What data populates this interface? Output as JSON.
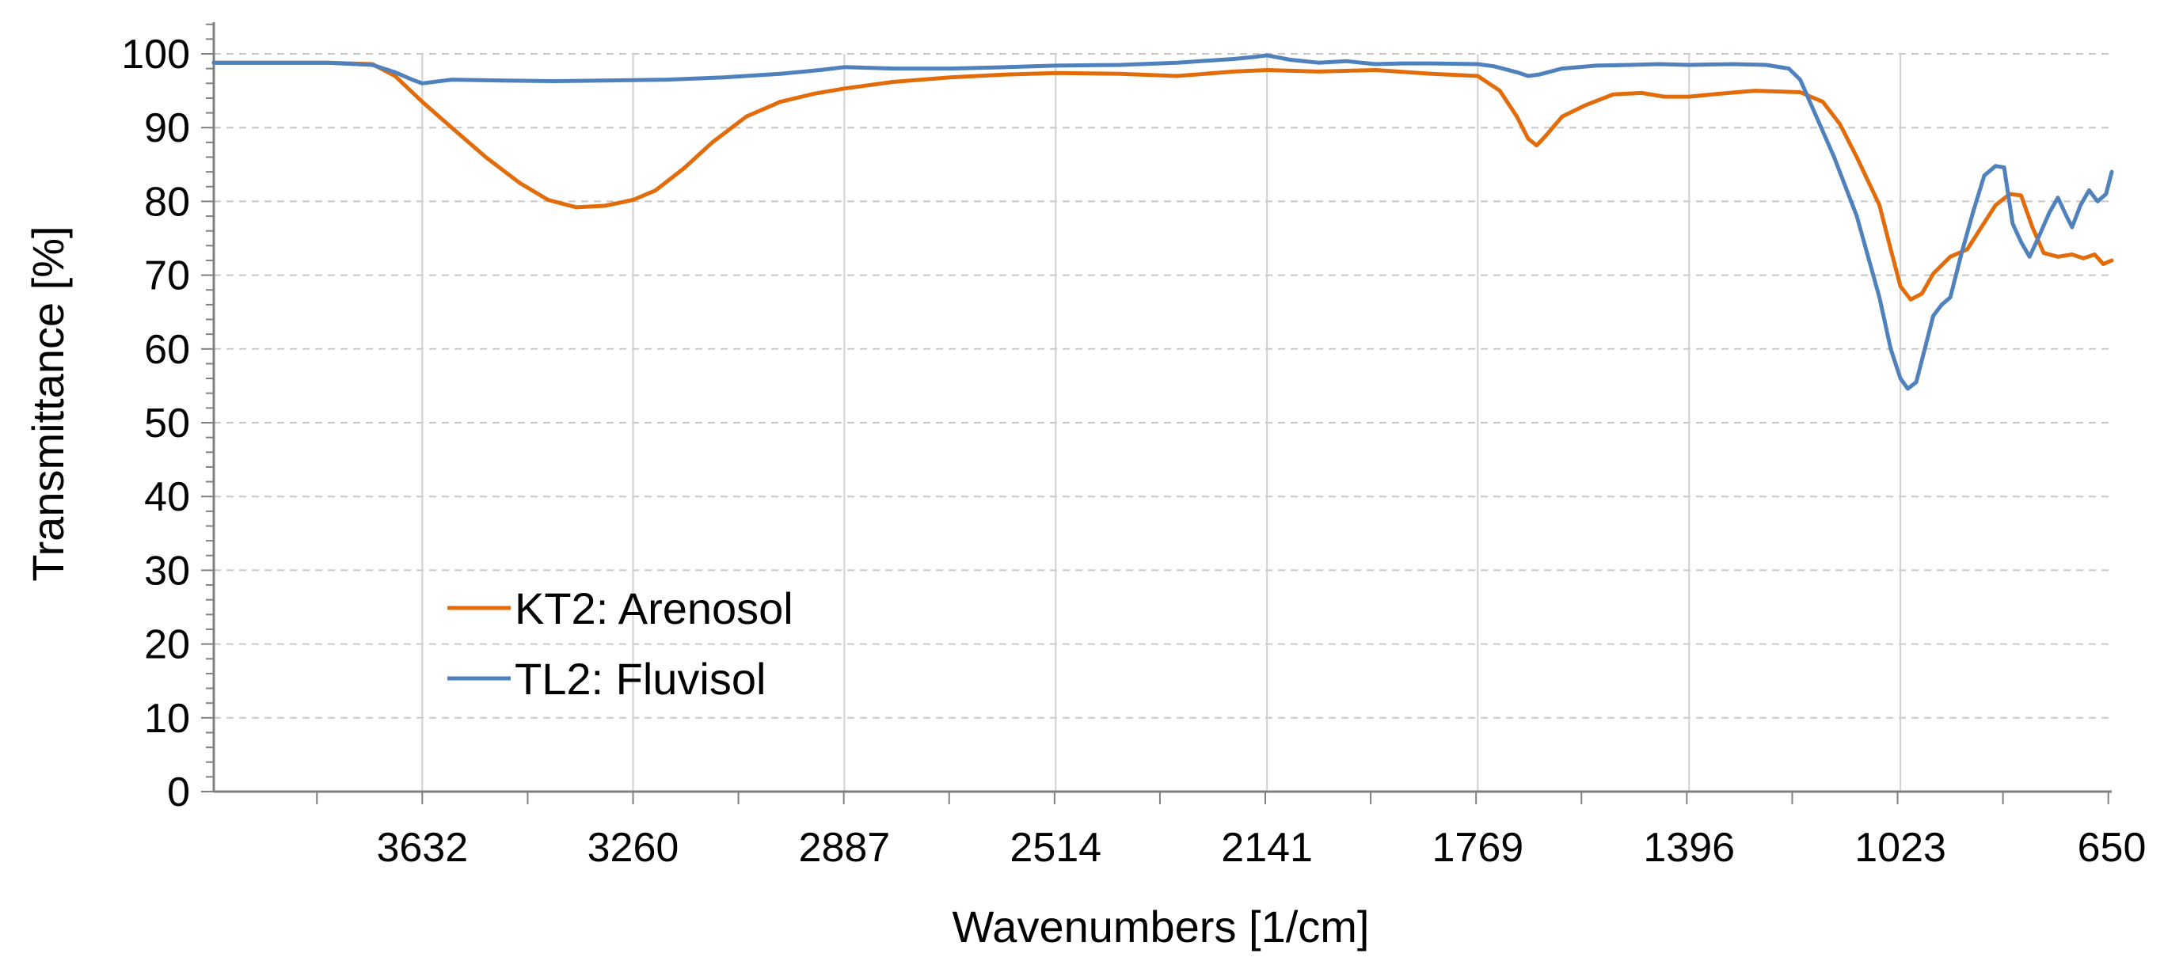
{
  "chart_data": {
    "type": "line",
    "title": "",
    "xlabel": "Wavenumbers [1/cm]",
    "ylabel": "Transmittance [%]",
    "xlim": [
      4000,
      650
    ],
    "ylim": [
      0,
      100
    ],
    "x_reversed": true,
    "x_ticks": [
      "3632",
      "3260",
      "2887",
      "2514",
      "2141",
      "1769",
      "1396",
      "1023",
      "650"
    ],
    "y_ticks": [
      "0",
      "10",
      "20",
      "30",
      "40",
      "50",
      "60",
      "70",
      "80",
      "90",
      "100"
    ],
    "grid": true,
    "legend_position": "lower-left",
    "series": [
      {
        "name": "KT2: Arenosol",
        "color": "#E36C0A",
        "points": [
          [
            4000,
            98.8
          ],
          [
            3900,
            98.8
          ],
          [
            3800,
            98.8
          ],
          [
            3720,
            98.6
          ],
          [
            3680,
            97
          ],
          [
            3632,
            93.5
          ],
          [
            3580,
            90
          ],
          [
            3520,
            86
          ],
          [
            3460,
            82.5
          ],
          [
            3410,
            80.2
          ],
          [
            3360,
            79.2
          ],
          [
            3310,
            79.4
          ],
          [
            3260,
            80.2
          ],
          [
            3220,
            81.5
          ],
          [
            3170,
            84.5
          ],
          [
            3120,
            88
          ],
          [
            3060,
            91.5
          ],
          [
            3000,
            93.5
          ],
          [
            2940,
            94.6
          ],
          [
            2887,
            95.3
          ],
          [
            2800,
            96.2
          ],
          [
            2700,
            96.8
          ],
          [
            2600,
            97.2
          ],
          [
            2514,
            97.4
          ],
          [
            2400,
            97.3
          ],
          [
            2300,
            97
          ],
          [
            2200,
            97.6
          ],
          [
            2141,
            97.8
          ],
          [
            2050,
            97.6
          ],
          [
            1950,
            97.8
          ],
          [
            1850,
            97.3
          ],
          [
            1769,
            97
          ],
          [
            1730,
            95
          ],
          [
            1700,
            91.5
          ],
          [
            1680,
            88.5
          ],
          [
            1665,
            87.6
          ],
          [
            1650,
            88.8
          ],
          [
            1620,
            91.5
          ],
          [
            1580,
            93
          ],
          [
            1530,
            94.5
          ],
          [
            1480,
            94.7
          ],
          [
            1440,
            94.2
          ],
          [
            1396,
            94.2
          ],
          [
            1340,
            94.6
          ],
          [
            1280,
            95
          ],
          [
            1200,
            94.8
          ],
          [
            1160,
            93.5
          ],
          [
            1130,
            90.5
          ],
          [
            1100,
            86
          ],
          [
            1060,
            79.5
          ],
          [
            1040,
            73.5
          ],
          [
            1023,
            68.5
          ],
          [
            1005,
            66.7
          ],
          [
            985,
            67.5
          ],
          [
            965,
            70.2
          ],
          [
            935,
            72.5
          ],
          [
            905,
            73.5
          ],
          [
            880,
            76.5
          ],
          [
            855,
            79.5
          ],
          [
            830,
            81
          ],
          [
            810,
            80.8
          ],
          [
            790,
            76.5
          ],
          [
            770,
            73
          ],
          [
            745,
            72.5
          ],
          [
            720,
            72.8
          ],
          [
            700,
            72.3
          ],
          [
            680,
            72.8
          ],
          [
            665,
            71.5
          ],
          [
            650,
            72
          ]
        ]
      },
      {
        "name": "TL2: Fluvisol",
        "color": "#4F81BD",
        "points": [
          [
            4000,
            98.8
          ],
          [
            3900,
            98.8
          ],
          [
            3800,
            98.8
          ],
          [
            3720,
            98.5
          ],
          [
            3680,
            97.5
          ],
          [
            3650,
            96.5
          ],
          [
            3632,
            96
          ],
          [
            3580,
            96.5
          ],
          [
            3500,
            96.4
          ],
          [
            3400,
            96.3
          ],
          [
            3300,
            96.4
          ],
          [
            3200,
            96.5
          ],
          [
            3100,
            96.8
          ],
          [
            3000,
            97.3
          ],
          [
            2930,
            97.8
          ],
          [
            2887,
            98.2
          ],
          [
            2800,
            98
          ],
          [
            2700,
            98
          ],
          [
            2600,
            98.2
          ],
          [
            2514,
            98.4
          ],
          [
            2400,
            98.5
          ],
          [
            2300,
            98.8
          ],
          [
            2200,
            99.3
          ],
          [
            2160,
            99.6
          ],
          [
            2141,
            99.8
          ],
          [
            2100,
            99.2
          ],
          [
            2050,
            98.8
          ],
          [
            2000,
            99
          ],
          [
            1950,
            98.6
          ],
          [
            1900,
            98.7
          ],
          [
            1850,
            98.7
          ],
          [
            1769,
            98.6
          ],
          [
            1740,
            98.3
          ],
          [
            1700,
            97.5
          ],
          [
            1680,
            97
          ],
          [
            1660,
            97.2
          ],
          [
            1620,
            98
          ],
          [
            1560,
            98.4
          ],
          [
            1500,
            98.5
          ],
          [
            1450,
            98.6
          ],
          [
            1396,
            98.5
          ],
          [
            1320,
            98.6
          ],
          [
            1260,
            98.5
          ],
          [
            1220,
            98
          ],
          [
            1200,
            96.5
          ],
          [
            1180,
            93
          ],
          [
            1160,
            89.5
          ],
          [
            1140,
            86
          ],
          [
            1100,
            78
          ],
          [
            1060,
            67
          ],
          [
            1040,
            60
          ],
          [
            1023,
            56
          ],
          [
            1010,
            54.6
          ],
          [
            995,
            55.5
          ],
          [
            980,
            60
          ],
          [
            965,
            64.5
          ],
          [
            950,
            66
          ],
          [
            935,
            67
          ],
          [
            915,
            73
          ],
          [
            895,
            78.5
          ],
          [
            875,
            83.5
          ],
          [
            855,
            84.8
          ],
          [
            840,
            84.6
          ],
          [
            825,
            77
          ],
          [
            810,
            74.5
          ],
          [
            795,
            72.5
          ],
          [
            780,
            75
          ],
          [
            760,
            78.5
          ],
          [
            745,
            80.5
          ],
          [
            730,
            78
          ],
          [
            720,
            76.5
          ],
          [
            705,
            79.5
          ],
          [
            690,
            81.5
          ],
          [
            675,
            80
          ],
          [
            660,
            81
          ],
          [
            650,
            84
          ]
        ]
      }
    ]
  }
}
